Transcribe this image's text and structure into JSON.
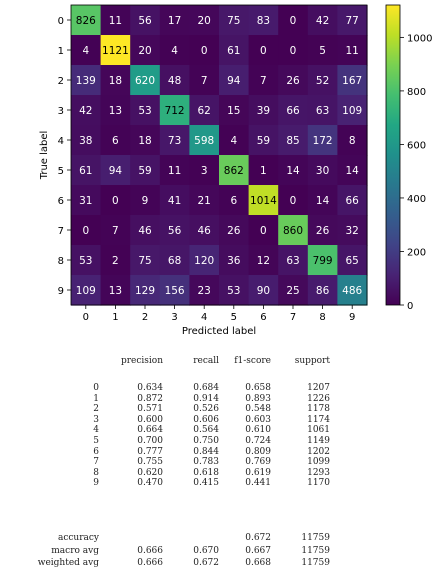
{
  "chart_data": {
    "type": "heatmap",
    "xlabel": "Predicted label",
    "ylabel": "True label",
    "x_ticks": [
      "0",
      "1",
      "2",
      "3",
      "4",
      "5",
      "6",
      "7",
      "8",
      "9"
    ],
    "y_ticks": [
      "0",
      "1",
      "2",
      "3",
      "4",
      "5",
      "6",
      "7",
      "8",
      "9"
    ],
    "colorbar_ticks": [
      0,
      200,
      400,
      600,
      800,
      1000
    ],
    "value_range": [
      0,
      1121
    ],
    "colormap": "viridis",
    "matrix": [
      [
        826,
        11,
        56,
        17,
        20,
        75,
        83,
        0,
        42,
        77
      ],
      [
        4,
        1121,
        20,
        4,
        0,
        61,
        0,
        0,
        5,
        11
      ],
      [
        139,
        18,
        620,
        48,
        7,
        94,
        7,
        26,
        52,
        167
      ],
      [
        42,
        13,
        53,
        712,
        62,
        15,
        39,
        66,
        63,
        109
      ],
      [
        38,
        6,
        18,
        73,
        598,
        4,
        59,
        85,
        172,
        8
      ],
      [
        61,
        94,
        59,
        11,
        3,
        862,
        1,
        14,
        30,
        14
      ],
      [
        31,
        0,
        9,
        41,
        21,
        6,
        1014,
        0,
        14,
        66
      ],
      [
        0,
        7,
        46,
        56,
        46,
        26,
        0,
        860,
        26,
        32
      ],
      [
        53,
        2,
        75,
        68,
        120,
        36,
        12,
        63,
        799,
        65
      ],
      [
        109,
        13,
        129,
        156,
        23,
        53,
        90,
        25,
        86,
        486
      ]
    ]
  },
  "report": {
    "headers": [
      "precision",
      "recall",
      "f1-score",
      "support"
    ],
    "rows": [
      {
        "label": "0",
        "precision": "0.634",
        "recall": "0.684",
        "f1": "0.658",
        "support": "1207"
      },
      {
        "label": "1",
        "precision": "0.872",
        "recall": "0.914",
        "f1": "0.893",
        "support": "1226"
      },
      {
        "label": "2",
        "precision": "0.571",
        "recall": "0.526",
        "f1": "0.548",
        "support": "1178"
      },
      {
        "label": "3",
        "precision": "0.600",
        "recall": "0.606",
        "f1": "0.603",
        "support": "1174"
      },
      {
        "label": "4",
        "precision": "0.664",
        "recall": "0.564",
        "f1": "0.610",
        "support": "1061"
      },
      {
        "label": "5",
        "precision": "0.700",
        "recall": "0.750",
        "f1": "0.724",
        "support": "1149"
      },
      {
        "label": "6",
        "precision": "0.777",
        "recall": "0.844",
        "f1": "0.809",
        "support": "1202"
      },
      {
        "label": "7",
        "precision": "0.755",
        "recall": "0.783",
        "f1": "0.769",
        "support": "1099"
      },
      {
        "label": "8",
        "precision": "0.620",
        "recall": "0.618",
        "f1": "0.619",
        "support": "1293"
      },
      {
        "label": "9",
        "precision": "0.470",
        "recall": "0.415",
        "f1": "0.441",
        "support": "1170"
      }
    ],
    "summary": [
      {
        "label": "accuracy",
        "precision": "",
        "recall": "",
        "f1": "0.672",
        "support": "11759"
      },
      {
        "label": "macro avg",
        "precision": "0.666",
        "recall": "0.670",
        "f1": "0.667",
        "support": "11759"
      },
      {
        "label": "weighted avg",
        "precision": "0.666",
        "recall": "0.672",
        "f1": "0.668",
        "support": "11759"
      }
    ]
  }
}
